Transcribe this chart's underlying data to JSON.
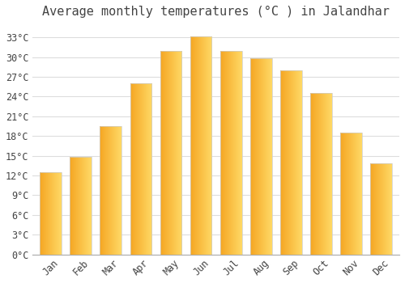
{
  "title": "Average monthly temperatures (°C ) in Jalandhar",
  "months": [
    "Jan",
    "Feb",
    "Mar",
    "Apr",
    "May",
    "Jun",
    "Jul",
    "Aug",
    "Sep",
    "Oct",
    "Nov",
    "Dec"
  ],
  "temperatures": [
    12.5,
    14.8,
    19.5,
    26.0,
    31.0,
    33.2,
    31.0,
    29.8,
    28.0,
    24.5,
    18.5,
    13.8
  ],
  "bar_color_left": "#F5A623",
  "bar_color_right": "#FFD966",
  "bar_edge_color": "#CCCCCC",
  "background_color": "#FFFFFF",
  "plot_bg_color": "#FFFFFF",
  "grid_color": "#DDDDDD",
  "text_color": "#444444",
  "yticks": [
    0,
    3,
    6,
    9,
    12,
    15,
    18,
    21,
    24,
    27,
    30,
    33
  ],
  "ylim": [
    0,
    35
  ],
  "title_fontsize": 11,
  "tick_fontsize": 8.5,
  "font_family": "monospace",
  "bar_width": 0.72
}
